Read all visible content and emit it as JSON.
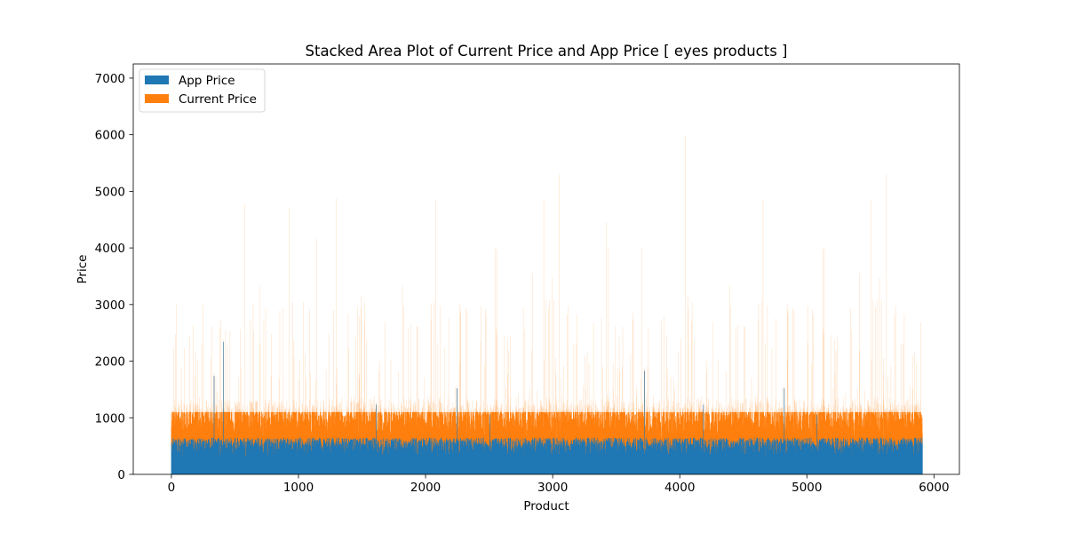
{
  "chart_data": {
    "type": "area",
    "stacked": true,
    "title": "Stacked Area Plot of Current Price and App Price [ eyes products ]",
    "xlabel": "Product",
    "ylabel": "Price",
    "xlim": [
      -300,
      6200
    ],
    "ylim": [
      0,
      7250
    ],
    "xticks": [
      0,
      1000,
      2000,
      3000,
      4000,
      5000,
      6000
    ],
    "xtick_labels": [
      "0",
      "1000",
      "2000",
      "3000",
      "4000",
      "5000",
      "6000"
    ],
    "yticks": [
      0,
      1000,
      2000,
      3000,
      4000,
      5000,
      6000,
      7000
    ],
    "ytick_labels": [
      "0",
      "1000",
      "2000",
      "3000",
      "4000",
      "5000",
      "6000",
      "7000"
    ],
    "n_points": 5910,
    "legend_position": "upper-left",
    "grid": false,
    "series": [
      {
        "name": "App Price",
        "color": "#1f77b4",
        "typical_range": [
          250,
          650
        ],
        "peak_values_approx": [
          1700,
          1900,
          2500
        ]
      },
      {
        "name": "Current Price",
        "color": "#ff7f0e",
        "typical_stack_top_range": [
          500,
          1100
        ],
        "spike_stack_tops_approx": [
          1900,
          2600,
          3050,
          3300,
          4350,
          5100,
          6200,
          6300
        ]
      }
    ]
  }
}
